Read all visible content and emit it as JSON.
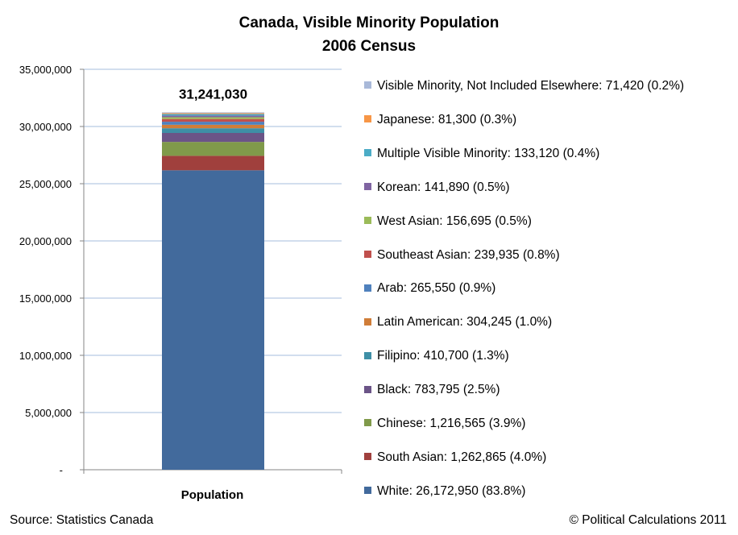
{
  "chart_data": {
    "type": "bar",
    "stacked": true,
    "title": "Canada, Visible Minority Population",
    "subtitle": "2006 Census",
    "categories": [
      "Population"
    ],
    "total_label": "31,241,030",
    "ylim": [
      0,
      35000000
    ],
    "y_ticks": [
      "-",
      "5,000,000",
      "10,000,000",
      "15,000,000",
      "20,000,000",
      "25,000,000",
      "30,000,000",
      "35,000,000"
    ],
    "y_tick_values": [
      0,
      5000000,
      10000000,
      15000000,
      20000000,
      25000000,
      30000000,
      35000000
    ],
    "grid": true,
    "legend_position": "right",
    "series": [
      {
        "name": "White: 26,172,950 (83.8%)",
        "values": [
          26172950
        ],
        "color": "#426A9C"
      },
      {
        "name": "South Asian: 1,262,865 (4.0%)",
        "values": [
          1262865
        ],
        "color": "#A0403D"
      },
      {
        "name": "Chinese: 1,216,565 (3.9%)",
        "values": [
          1216565
        ],
        "color": "#809A4A"
      },
      {
        "name": "Black: 783,795 (2.5%)",
        "values": [
          783795
        ],
        "color": "#6B5487"
      },
      {
        "name": "Filipino: 410,700 (1.3%)",
        "values": [
          410700
        ],
        "color": "#3E8FA6"
      },
      {
        "name": "Latin American: 304,245 (1.0%)",
        "values": [
          304245
        ],
        "color": "#D07D38"
      },
      {
        "name": "Arab: 265,550 (0.9%)",
        "values": [
          265550
        ],
        "color": "#4F81BD"
      },
      {
        "name": "Southeast Asian: 239,935 (0.8%)",
        "values": [
          239935
        ],
        "color": "#C0504D"
      },
      {
        "name": "West Asian: 156,695 (0.5%)",
        "values": [
          156695
        ],
        "color": "#9BBB59"
      },
      {
        "name": "Korean: 141,890 (0.5%)",
        "values": [
          141890
        ],
        "color": "#8064A2"
      },
      {
        "name": "Multiple Visible Minority: 133,120 (0.4%)",
        "values": [
          133120
        ],
        "color": "#4BACC6"
      },
      {
        "name": "Japanese: 81,300 (0.3%)",
        "values": [
          81300
        ],
        "color": "#F79646"
      },
      {
        "name": "Visible Minority, Not Included Elsewhere: 71,420 (0.2%)",
        "values": [
          71420
        ],
        "color": "#A9B9D9"
      }
    ]
  },
  "footer": {
    "source": "Source: Statistics Canada",
    "credit": "© Political Calculations 2011"
  }
}
